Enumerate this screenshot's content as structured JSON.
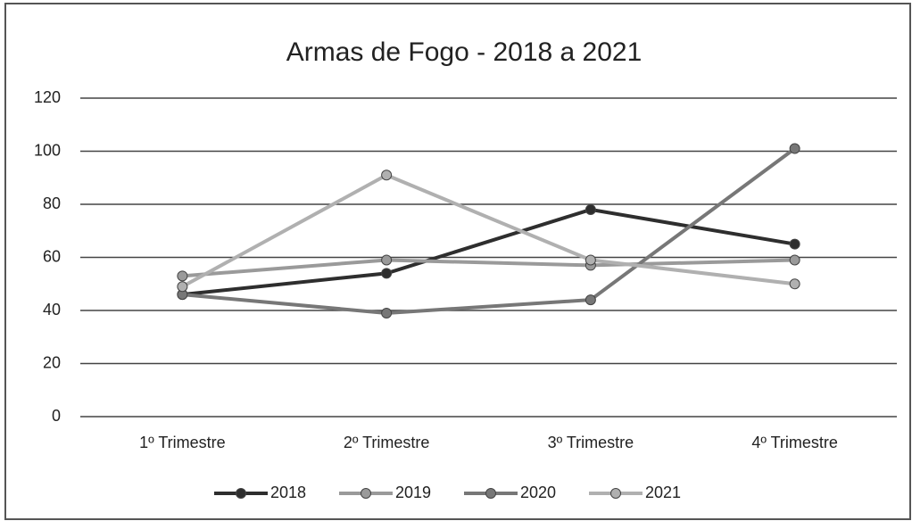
{
  "chart_data": {
    "type": "line",
    "title": "Armas de Fogo - 2018 a 2021",
    "categories": [
      "1º Trimestre",
      "2º Trimestre",
      "3º Trimestre",
      "4º Trimestre"
    ],
    "series": [
      {
        "name": "2018",
        "color": "#2e2e2e",
        "values": [
          46,
          54,
          78,
          65
        ]
      },
      {
        "name": "2019",
        "color": "#9a9a9a",
        "values": [
          53,
          59,
          57,
          59
        ]
      },
      {
        "name": "2020",
        "color": "#777777",
        "values": [
          46,
          39,
          44,
          101
        ]
      },
      {
        "name": "2021",
        "color": "#b0b0b0",
        "values": [
          49,
          91,
          59,
          50
        ]
      }
    ],
    "ylim": [
      0,
      120
    ],
    "yticks": [
      0,
      20,
      40,
      60,
      80,
      100,
      120
    ],
    "grid": true,
    "legend": "bottom"
  }
}
